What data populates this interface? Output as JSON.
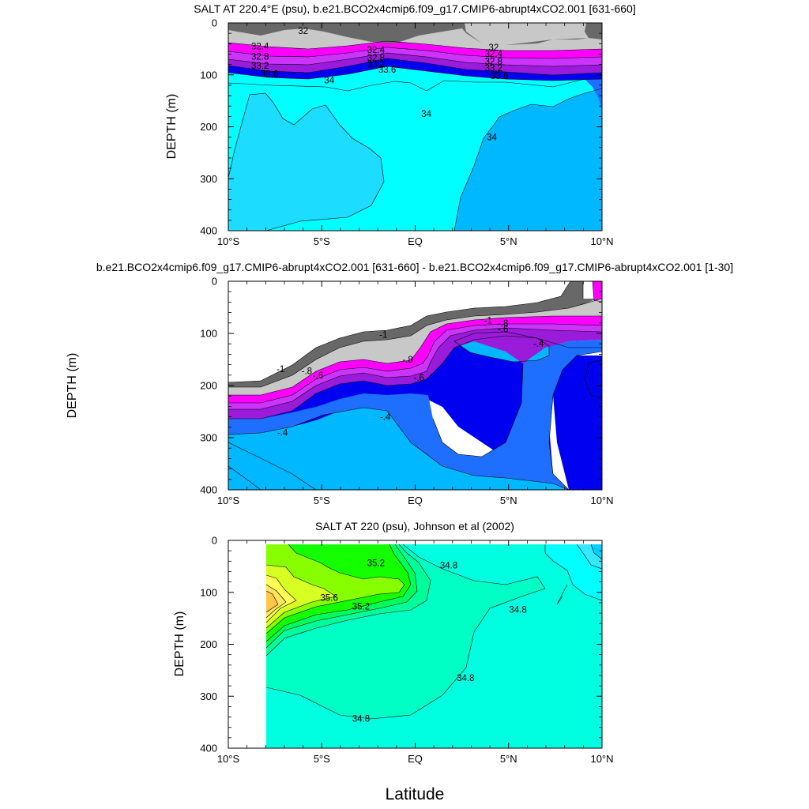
{
  "shared": {
    "xlabel": "Latitude",
    "panels_ylabel": "DEPTH (m)",
    "xticks": [
      {
        "v": -10,
        "t": "10°S"
      },
      {
        "v": -5,
        "t": "5°S"
      },
      {
        "v": 0,
        "t": "EQ"
      },
      {
        "v": 5,
        "t": "5°N"
      },
      {
        "v": 10,
        "t": "10°N"
      }
    ],
    "yticks": [
      0,
      100,
      200,
      300,
      400
    ]
  },
  "chart_data": [
    {
      "type": "heatmap",
      "title": "SALT AT 220.4°E (psu), b.e21.BCO2x4cmip6.f09_g17.CMIP6-abrupt4xCO2.001 [631-660]",
      "xlabel": "",
      "ylabel": "DEPTH (m)",
      "xlim": [
        -10,
        10
      ],
      "ylim": [
        400,
        0
      ],
      "colors": {
        "low": "#686868",
        "band1": "#c8c8c8",
        "band2": "#ff00ff",
        "band3": "#cc33ff",
        "band4": "#9a1bd9",
        "band5": "#0000f0",
        "band6": "#1e6eff",
        "band7": "#00b8ff",
        "band8": "#1cdcff",
        "high": "#00ffff"
      },
      "contour_labels": [
        {
          "t": "32",
          "x": -6.0,
          "y": 15
        },
        {
          "t": "32",
          "x": 4.2,
          "y": 47
        },
        {
          "t": "32.4",
          "x": -8.3,
          "y": 45
        },
        {
          "t": "32.8",
          "x": -8.3,
          "y": 65
        },
        {
          "t": "33.2",
          "x": -8.3,
          "y": 82
        },
        {
          "t": "33.6",
          "x": -7.8,
          "y": 98
        },
        {
          "t": "32.4",
          "x": -2.1,
          "y": 52
        },
        {
          "t": "32.8",
          "x": -2.1,
          "y": 67
        },
        {
          "t": "33.2",
          "x": -2.1,
          "y": 79
        },
        {
          "t": "33.6",
          "x": -1.5,
          "y": 90
        },
        {
          "t": "32.4",
          "x": 4.2,
          "y": 59
        },
        {
          "t": "32.8",
          "x": 4.2,
          "y": 74
        },
        {
          "t": "33.2",
          "x": 4.2,
          "y": 87
        },
        {
          "t": "33.6",
          "x": 4.5,
          "y": 102
        },
        {
          "t": "34",
          "x": -4.6,
          "y": 110
        },
        {
          "t": "34",
          "x": 0.6,
          "y": 175
        },
        {
          "t": "34",
          "x": 4.1,
          "y": 220
        }
      ]
    },
    {
      "type": "heatmap",
      "title": "b.e21.BCO2x4cmip6.f09_g17.CMIP6-abrupt4xCO2.001 [631-660] - b.e21.BCO2x4cmip6.f09_g17.CMIP6-abrupt4xCO2.001 [1-30]",
      "xlabel": "",
      "ylabel": "DEPTH (m)",
      "xlim": [
        -10,
        10
      ],
      "ylim": [
        400,
        0
      ],
      "colors": {
        "lowest": "#686868",
        "band1": "#c8c8c8",
        "band2": "#ff00ff",
        "band3": "#cc33ff",
        "band4": "#9a1bd9",
        "band5": "#0000f0",
        "band6": "#1e6eff",
        "band7": "#00b8ff",
        "band8": "#1cdcff",
        "band9": "#00ffff"
      },
      "contour_labels": [
        {
          "t": "-1",
          "x": -1.7,
          "y": 102
        },
        {
          "t": "-1",
          "x": -7.2,
          "y": 168
        },
        {
          "t": "-1",
          "x": 3.9,
          "y": 75
        },
        {
          "t": "-.8",
          "x": -5.8,
          "y": 172
        },
        {
          "t": "-.8",
          "x": -0.4,
          "y": 150
        },
        {
          "t": "-.8",
          "x": 4.7,
          "y": 80
        },
        {
          "t": "-.6",
          "x": -5.2,
          "y": 180
        },
        {
          "t": "-.6",
          "x": 0.2,
          "y": 185
        },
        {
          "t": "-.6",
          "x": 4.7,
          "y": 92
        },
        {
          "t": "-.4",
          "x": -7.1,
          "y": 290
        },
        {
          "t": "-.4",
          "x": -1.6,
          "y": 260
        },
        {
          "t": "-.4",
          "x": 6.6,
          "y": 120
        }
      ]
    },
    {
      "type": "heatmap",
      "title": "SALT AT 220 (psu), Johnson et al (2002)",
      "xlabel": "Latitude",
      "ylabel": "DEPTH (m)",
      "xlim": [
        -10,
        10
      ],
      "ylim": [
        400,
        0
      ],
      "data_xrange": [
        -8,
        10
      ],
      "colors": {
        "band1": "#00ffe0",
        "band2": "#00ffc4",
        "band3": "#00ff9a",
        "band4": "#00ff5a",
        "band5": "#14ff00",
        "band6": "#88ff00",
        "band7": "#d8ff22",
        "band8": "#ffff55",
        "band9": "#ffe65a",
        "band10": "#ffc648",
        "fresh1": "#00ffff",
        "fresh2": "#33e8ff",
        "fresh3": "#00d2ff"
      },
      "contour_labels": [
        {
          "t": "35.2",
          "x": -2.1,
          "y": 43
        },
        {
          "t": "34.8",
          "x": 1.8,
          "y": 48
        },
        {
          "t": "35.6",
          "x": -4.6,
          "y": 110
        },
        {
          "t": "35.2",
          "x": -2.9,
          "y": 127
        },
        {
          "t": "34.8",
          "x": 5.5,
          "y": 133
        },
        {
          "t": "34.8",
          "x": 2.7,
          "y": 265
        },
        {
          "t": "34.8",
          "x": -2.9,
          "y": 343
        }
      ]
    }
  ]
}
